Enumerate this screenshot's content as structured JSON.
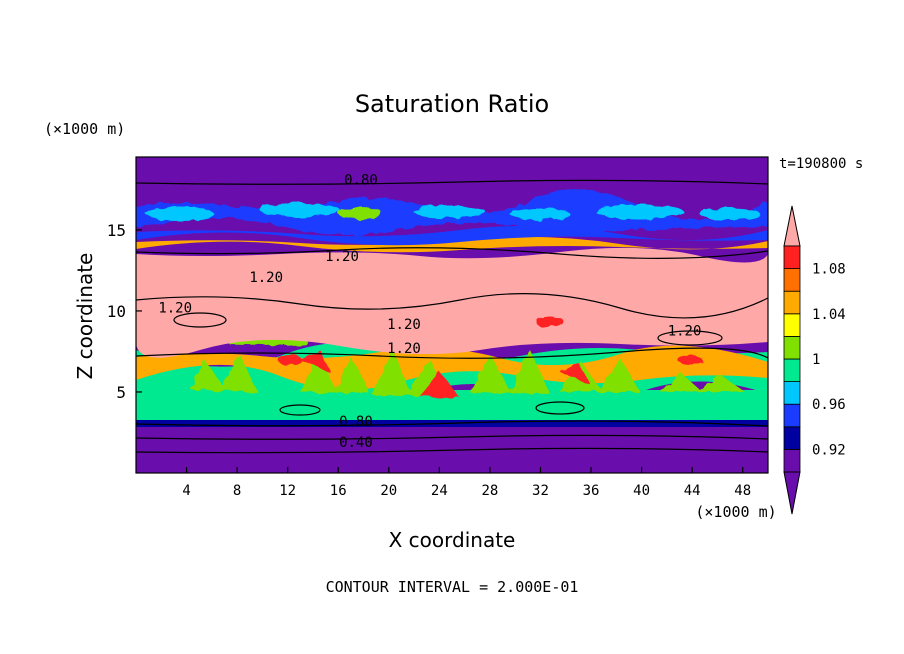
{
  "chart_data": {
    "type": "heatmap",
    "title": "Saturation Ratio",
    "xlabel": "X coordinate",
    "ylabel": "Z coordinate",
    "x_unit": "(×1000 m)",
    "y_unit": "(×1000 m)",
    "time_label": "t=190800 s",
    "footer": "CONTOUR INTERVAL = 2.000E-01",
    "xlim": [
      0,
      50
    ],
    "ylim": [
      0,
      19.5
    ],
    "x_ticks": [
      4,
      8,
      12,
      16,
      20,
      24,
      28,
      32,
      36,
      40,
      44,
      48
    ],
    "y_ticks": [
      5,
      10,
      15
    ],
    "colorbar": {
      "labels": [
        "1.08",
        "1.04",
        "1",
        "0.96",
        "0.92"
      ],
      "label_values": [
        1.08,
        1.04,
        1.0,
        0.96,
        0.92
      ],
      "bins": [
        {
          "min": 0.9,
          "max": 0.92,
          "color": "#6a0dad"
        },
        {
          "min": 0.92,
          "max": 0.94,
          "color": "#0000a0"
        },
        {
          "min": 0.94,
          "max": 0.96,
          "color": "#1a3cff"
        },
        {
          "min": 0.96,
          "max": 0.98,
          "color": "#00c8ff"
        },
        {
          "min": 0.98,
          "max": 1.0,
          "color": "#00e890"
        },
        {
          "min": 1.0,
          "max": 1.02,
          "color": "#80e000"
        },
        {
          "min": 1.02,
          "max": 1.04,
          "color": "#ffff00"
        },
        {
          "min": 1.04,
          "max": 1.06,
          "color": "#ffaa00"
        },
        {
          "min": 1.06,
          "max": 1.08,
          "color": "#ff7000"
        },
        {
          "min": 1.08,
          "max": 1.1,
          "color": "#ff2020"
        }
      ],
      "under_color": "#6a0dad",
      "over_color": "#ffa8a8"
    },
    "contour_labels": [
      {
        "text": "0.80",
        "x": 17.8,
        "z": 18.1
      },
      {
        "text": "1.20",
        "x": 16.3,
        "z": 13.4
      },
      {
        "text": "1.20",
        "x": 10.3,
        "z": 12.1
      },
      {
        "text": "1.20",
        "x": 3.1,
        "z": 10.2
      },
      {
        "text": "1.20",
        "x": 21.2,
        "z": 9.2
      },
      {
        "text": "1.20",
        "x": 21.2,
        "z": 7.7
      },
      {
        "text": "1.20",
        "x": 43.4,
        "z": 8.8
      },
      {
        "text": "0.80",
        "x": 17.4,
        "z": 3.2
      },
      {
        "text": "0.40",
        "x": 17.4,
        "z": 1.9
      }
    ],
    "horizontal_bands": [
      {
        "z0": 0,
        "z1": 3.6,
        "value": "below 0.92"
      },
      {
        "z0": 3.6,
        "z1": 4.2,
        "value": "0.96-1.00"
      },
      {
        "z0": 4.2,
        "z1": 7.6,
        "value": "1.00-1.08 (mixed)"
      },
      {
        "z0": 7.6,
        "z1": 14.0,
        "value": "above 1.10"
      },
      {
        "z0": 14.0,
        "z1": 14.8,
        "value": "1.04-1.08"
      },
      {
        "z0": 14.8,
        "z1": 15.6,
        "value": "0.92-0.96"
      },
      {
        "z0": 15.6,
        "z1": 17.5,
        "value": "0.94-1.00"
      },
      {
        "z0": 17.5,
        "z1": 19.5,
        "value": "below 0.92"
      }
    ]
  }
}
